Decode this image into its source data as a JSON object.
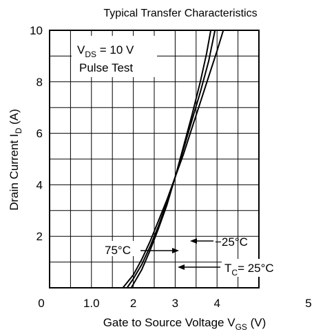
{
  "chart_data": {
    "type": "line",
    "title": "Typical Transfer Characteristics",
    "xlabel": {
      "main": "Gate to Source Voltage  V",
      "sub": "GS",
      "unit": "  (V)"
    },
    "ylabel": {
      "main": "Drain Current  I",
      "sub": "D",
      "unit": "  (A)"
    },
    "xlim": [
      0,
      5
    ],
    "ylim": [
      0,
      10
    ],
    "x_ticks": [
      {
        "v": 0,
        "label": "0"
      },
      {
        "v": 1,
        "label": "1.0"
      },
      {
        "v": 2,
        "label": "2"
      },
      {
        "v": 3,
        "label": "3"
      },
      {
        "v": 4,
        "label": "4"
      },
      {
        "v": 5,
        "label": "5"
      }
    ],
    "y_ticks": [
      {
        "v": 2,
        "label": "2"
      },
      {
        "v": 4,
        "label": "4"
      },
      {
        "v": 6,
        "label": "6"
      },
      {
        "v": 8,
        "label": "8"
      },
      {
        "v": 10,
        "label": "10"
      }
    ],
    "grid": true,
    "grid_step_x": 0.5,
    "grid_step_y": 1,
    "conditions": {
      "vds_main": "V",
      "vds_sub": "DS",
      "vds_rest": " = 10 V",
      "pulse": "Pulse Test"
    },
    "series": [
      {
        "key": "75C",
        "points": [
          [
            1.85,
            0
          ],
          [
            2.0,
            0.35
          ],
          [
            2.2,
            0.9
          ],
          [
            2.4,
            1.6
          ],
          [
            2.6,
            2.4
          ],
          [
            2.8,
            3.3
          ],
          [
            3.0,
            4.3
          ],
          [
            3.2,
            5.2
          ],
          [
            3.4,
            6.2
          ],
          [
            3.6,
            7.2
          ],
          [
            3.8,
            8.2
          ],
          [
            4.0,
            9.2
          ],
          [
            4.15,
            10
          ]
        ]
      },
      {
        "key": "25C",
        "points": [
          [
            1.75,
            0
          ],
          [
            2.0,
            0.5
          ],
          [
            2.2,
            1.1
          ],
          [
            2.4,
            1.8
          ],
          [
            2.6,
            2.6
          ],
          [
            2.8,
            3.4
          ],
          [
            3.0,
            4.3
          ],
          [
            3.2,
            5.4
          ],
          [
            3.4,
            6.5
          ],
          [
            3.6,
            7.6
          ],
          [
            3.8,
            8.8
          ],
          [
            3.95,
            10
          ]
        ]
      },
      {
        "key": "-25C",
        "points": [
          [
            1.95,
            0
          ],
          [
            2.2,
            0.7
          ],
          [
            2.4,
            1.45
          ],
          [
            2.6,
            2.3
          ],
          [
            2.8,
            3.2
          ],
          [
            3.0,
            4.3
          ],
          [
            3.2,
            5.5
          ],
          [
            3.4,
            6.7
          ],
          [
            3.6,
            8.0
          ],
          [
            3.75,
            9.1
          ],
          [
            3.85,
            10
          ]
        ]
      }
    ],
    "annotations": [
      {
        "key": "m25",
        "text": "−25°C"
      },
      {
        "key": "75",
        "text": "75°C"
      },
      {
        "key": "tc",
        "main": "T",
        "sub": "C",
        "rest": "= 25°C"
      }
    ]
  }
}
